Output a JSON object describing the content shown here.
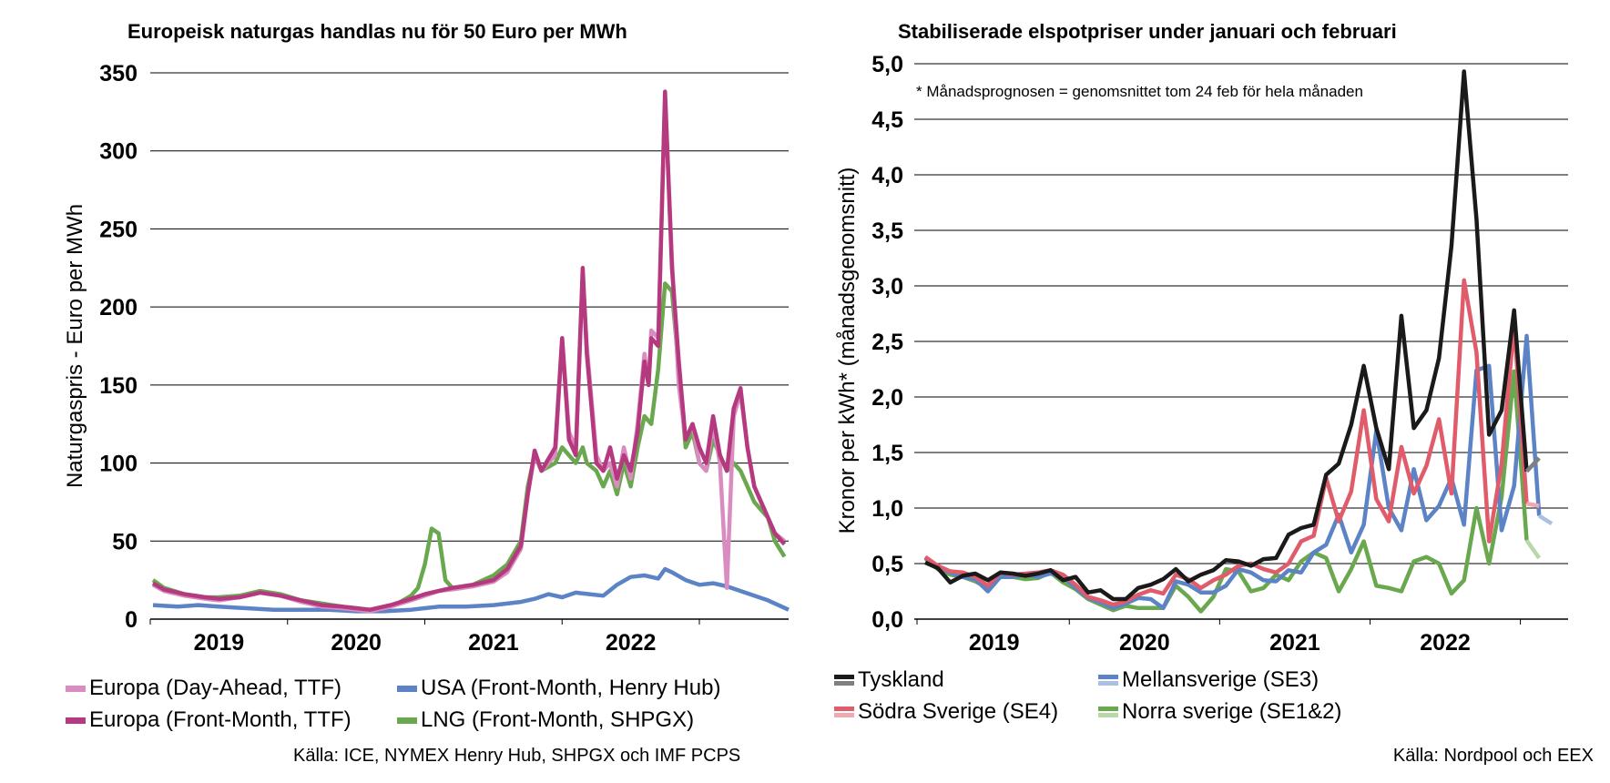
{
  "charts": [
    {
      "title": "Europeisk naturgas handlas nu för 50 Euro per MWh",
      "ylabel": "Naturgaspris - Euro per MWh",
      "source": "Källa: ICE, NYMEX Henry Hub, SHPGX och IMF PCPS"
    },
    {
      "title": "Stabiliserade elspotpriser under januari och februari",
      "ylabel": "Kronor per kWh* (månadsgenomsnitt)",
      "note": "* Månadsprognosen = genomsnittet tom 24 feb för hela månaden",
      "source": "Källa: Nordpool och EEX"
    }
  ],
  "chart_data": [
    {
      "type": "line",
      "title": "Europeisk naturgas handlas nu för 50 Euro per MWh",
      "xlabel": "",
      "ylabel": "Naturgaspris - Euro per MWh",
      "xlim": [
        2018.5,
        2023.15
      ],
      "ylim": [
        0,
        350
      ],
      "yticks": [
        0,
        50,
        100,
        150,
        200,
        250,
        300,
        350
      ],
      "xtick_labels": [
        "2019",
        "2020",
        "2021",
        "2022"
      ],
      "grid": true,
      "legend_position": "bottom",
      "series": [
        {
          "name": "Europa (Day-Ahead, TTF)",
          "color": "#d98cbf",
          "x": [
            2018.52,
            2018.6,
            2018.75,
            2018.9,
            2019.0,
            2019.15,
            2019.3,
            2019.45,
            2019.6,
            2019.75,
            2019.9,
            2020.0,
            2020.1,
            2020.25,
            2020.4,
            2020.5,
            2020.6,
            2020.7,
            2020.85,
            2021.0,
            2021.1,
            2021.2,
            2021.25,
            2021.3,
            2021.35,
            2021.45,
            2021.5,
            2021.55,
            2021.6,
            2021.65,
            2021.68,
            2021.75,
            2021.8,
            2021.85,
            2021.9,
            2021.95,
            2022.0,
            2022.05,
            2022.1,
            2022.13,
            2022.15,
            2022.2,
            2022.25,
            2022.3,
            2022.35,
            2022.4,
            2022.45,
            2022.5,
            2022.55,
            2022.6,
            2022.65,
            2022.7,
            2022.75,
            2022.8,
            2022.85,
            2022.9,
            2022.95,
            2023.0,
            2023.05,
            2023.12
          ],
          "y": [
            22,
            18,
            15,
            13,
            12,
            14,
            17,
            15,
            11,
            8,
            7,
            6,
            5,
            8,
            12,
            15,
            18,
            19,
            21,
            24,
            30,
            45,
            80,
            105,
            95,
            105,
            180,
            120,
            110,
            220,
            175,
            105,
            95,
            100,
            85,
            110,
            90,
            125,
            170,
            150,
            185,
            180,
            335,
            230,
            150,
            115,
            125,
            100,
            95,
            125,
            100,
            20,
            130,
            145,
            110,
            85,
            75,
            65,
            55,
            50
          ]
        },
        {
          "name": "Europa (Front-Month, TTF)",
          "color": "#b5397f",
          "x": [
            2018.52,
            2018.6,
            2018.75,
            2018.9,
            2019.0,
            2019.15,
            2019.3,
            2019.45,
            2019.6,
            2019.75,
            2019.9,
            2020.0,
            2020.1,
            2020.25,
            2020.4,
            2020.5,
            2020.6,
            2020.7,
            2020.85,
            2021.0,
            2021.1,
            2021.2,
            2021.25,
            2021.3,
            2021.35,
            2021.45,
            2021.5,
            2021.55,
            2021.6,
            2021.65,
            2021.68,
            2021.75,
            2021.8,
            2021.85,
            2021.9,
            2021.95,
            2022.0,
            2022.05,
            2022.1,
            2022.13,
            2022.15,
            2022.2,
            2022.25,
            2022.3,
            2022.35,
            2022.4,
            2022.45,
            2022.5,
            2022.55,
            2022.6,
            2022.65,
            2022.7,
            2022.75,
            2022.8,
            2022.85,
            2022.9,
            2022.95,
            2023.0,
            2023.05,
            2023.12
          ],
          "y": [
            23,
            19,
            16,
            14,
            13,
            14,
            17,
            15,
            12,
            9,
            8,
            7,
            6,
            9,
            13,
            16,
            18,
            20,
            22,
            25,
            32,
            47,
            80,
            108,
            95,
            110,
            180,
            115,
            105,
            225,
            170,
            100,
            95,
            110,
            90,
            105,
            95,
            120,
            165,
            150,
            180,
            175,
            338,
            225,
            165,
            115,
            125,
            110,
            100,
            130,
            105,
            95,
            135,
            148,
            110,
            85,
            75,
            65,
            55,
            48
          ]
        },
        {
          "name": "USA (Front-Month, Henry Hub)",
          "color": "#5b83c6",
          "x": [
            2018.52,
            2018.7,
            2018.85,
            2019.0,
            2019.2,
            2019.4,
            2019.6,
            2019.8,
            2020.0,
            2020.2,
            2020.4,
            2020.5,
            2020.6,
            2020.8,
            2021.0,
            2021.1,
            2021.2,
            2021.3,
            2021.4,
            2021.5,
            2021.6,
            2021.7,
            2021.8,
            2021.9,
            2022.0,
            2022.1,
            2022.2,
            2022.25,
            2022.3,
            2022.4,
            2022.5,
            2022.6,
            2022.7,
            2022.8,
            2022.9,
            2023.0,
            2023.1,
            2023.15
          ],
          "y": [
            9,
            8,
            9,
            8,
            7,
            6,
            6,
            6,
            5,
            5,
            6,
            7,
            8,
            8,
            9,
            10,
            11,
            13,
            16,
            14,
            17,
            16,
            15,
            22,
            27,
            28,
            26,
            32,
            30,
            25,
            22,
            23,
            21,
            18,
            15,
            12,
            8,
            6
          ]
        },
        {
          "name": "LNG (Front-Month, SHPGX)",
          "color": "#6aa84f",
          "x": [
            2018.52,
            2018.6,
            2018.75,
            2018.9,
            2019.0,
            2019.15,
            2019.3,
            2019.45,
            2019.6,
            2019.75,
            2019.9,
            2020.0,
            2020.1,
            2020.2,
            2020.3,
            2020.4,
            2020.45,
            2020.5,
            2020.55,
            2020.6,
            2020.65,
            2020.7,
            2020.85,
            2021.0,
            2021.1,
            2021.2,
            2021.25,
            2021.3,
            2021.35,
            2021.45,
            2021.5,
            2021.55,
            2021.6,
            2021.65,
            2021.68,
            2021.75,
            2021.8,
            2021.85,
            2021.9,
            2021.95,
            2022.0,
            2022.05,
            2022.1,
            2022.15,
            2022.2,
            2022.25,
            2022.3,
            2022.35,
            2022.4,
            2022.45,
            2022.5,
            2022.55,
            2022.6,
            2022.65,
            2022.7,
            2022.75,
            2022.8,
            2022.85,
            2022.9,
            2022.95,
            2023.0,
            2023.05,
            2023.12
          ],
          "y": [
            25,
            20,
            16,
            14,
            14,
            15,
            18,
            16,
            12,
            10,
            8,
            7,
            6,
            7,
            10,
            15,
            20,
            35,
            58,
            55,
            25,
            20,
            22,
            28,
            35,
            50,
            85,
            105,
            95,
            100,
            110,
            105,
            100,
            110,
            100,
            95,
            85,
            95,
            80,
            100,
            85,
            110,
            130,
            125,
            160,
            215,
            210,
            160,
            110,
            120,
            100,
            95,
            115,
            105,
            95,
            100,
            95,
            85,
            75,
            70,
            65,
            50,
            40
          ]
        }
      ]
    },
    {
      "type": "line",
      "title": "Stabiliserade elspotpriser under januari och februari",
      "xlabel": "",
      "ylabel": "Kronor per kWh* (månadsgenomsnitt)",
      "xlim": [
        0,
        50
      ],
      "ylim": [
        0,
        5
      ],
      "yticks": [
        "0,0",
        "0,5",
        "1,0",
        "1,5",
        "2,0",
        "2,5",
        "3,0",
        "3,5",
        "4,0",
        "4,5",
        "5,0"
      ],
      "xtick_labels": [
        "2019",
        "2020",
        "2021",
        "2022"
      ],
      "grid": true,
      "legend_position": "bottom",
      "annotation": "* Månadsprognosen = genomsnittet tom 24 feb för hela månaden",
      "series": [
        {
          "name": "Tyskland",
          "color": "#1a1a1a",
          "forecast_color": "#7f7f7f",
          "y": [
            0.51,
            0.46,
            0.33,
            0.39,
            0.41,
            0.35,
            0.42,
            0.41,
            0.39,
            0.41,
            0.44,
            0.35,
            0.38,
            0.24,
            0.26,
            0.18,
            0.18,
            0.28,
            0.31,
            0.36,
            0.45,
            0.34,
            0.4,
            0.44,
            0.53,
            0.52,
            0.48,
            0.54,
            0.55,
            0.76,
            0.82,
            0.85,
            1.3,
            1.4,
            1.75,
            2.28,
            1.72,
            1.35,
            2.73,
            1.72,
            1.88,
            2.35,
            3.36,
            4.93,
            3.6,
            1.66,
            1.88,
            2.78,
            1.33
          ],
          "forecast": [
            1.33,
            1.45
          ]
        },
        {
          "name": "Mellansverige (SE3)",
          "color": "#5b83c6",
          "forecast_color": "#a9bfe3",
          "y": [
            0.55,
            0.47,
            0.42,
            0.38,
            0.36,
            0.25,
            0.38,
            0.38,
            0.4,
            0.38,
            0.41,
            0.38,
            0.28,
            0.19,
            0.15,
            0.1,
            0.14,
            0.19,
            0.18,
            0.1,
            0.34,
            0.31,
            0.24,
            0.24,
            0.3,
            0.45,
            0.42,
            0.35,
            0.34,
            0.44,
            0.42,
            0.6,
            0.67,
            0.94,
            0.6,
            0.85,
            1.7,
            1.0,
            0.8,
            1.35,
            0.89,
            1.02,
            1.27,
            0.85,
            2.24,
            2.28,
            0.8,
            1.2,
            2.55,
            0.93
          ],
          "forecast": [
            0.93,
            0.86
          ]
        },
        {
          "name": "Södra Sverige (SE4)",
          "color": "#e05c6a",
          "forecast_color": "#f0a9b0",
          "y": [
            0.56,
            0.48,
            0.43,
            0.42,
            0.38,
            0.3,
            0.42,
            0.4,
            0.41,
            0.42,
            0.44,
            0.4,
            0.31,
            0.2,
            0.17,
            0.13,
            0.16,
            0.22,
            0.26,
            0.23,
            0.4,
            0.36,
            0.28,
            0.35,
            0.4,
            0.48,
            0.5,
            0.45,
            0.42,
            0.5,
            0.7,
            0.75,
            1.27,
            0.88,
            1.15,
            1.88,
            1.08,
            0.88,
            1.55,
            1.13,
            1.38,
            1.8,
            1.13,
            3.05,
            2.4,
            0.7,
            1.4,
            2.65,
            1.04
          ],
          "forecast": [
            1.04,
            1.02
          ]
        },
        {
          "name": "Norra sverige (SE1&2)",
          "color": "#6aa84f",
          "forecast_color": "#b8d8a8",
          "y": [
            0.55,
            0.45,
            0.4,
            0.38,
            0.34,
            0.28,
            0.38,
            0.38,
            0.36,
            0.37,
            0.42,
            0.33,
            0.27,
            0.18,
            0.13,
            0.08,
            0.12,
            0.1,
            0.1,
            0.1,
            0.3,
            0.2,
            0.07,
            0.2,
            0.45,
            0.43,
            0.25,
            0.28,
            0.4,
            0.35,
            0.52,
            0.6,
            0.55,
            0.25,
            0.45,
            0.7,
            0.3,
            0.28,
            0.25,
            0.52,
            0.56,
            0.5,
            0.23,
            0.35,
            1.0,
            0.5,
            1.1,
            2.23,
            0.71
          ],
          "forecast": [
            0.71,
            0.55
          ]
        }
      ]
    }
  ]
}
